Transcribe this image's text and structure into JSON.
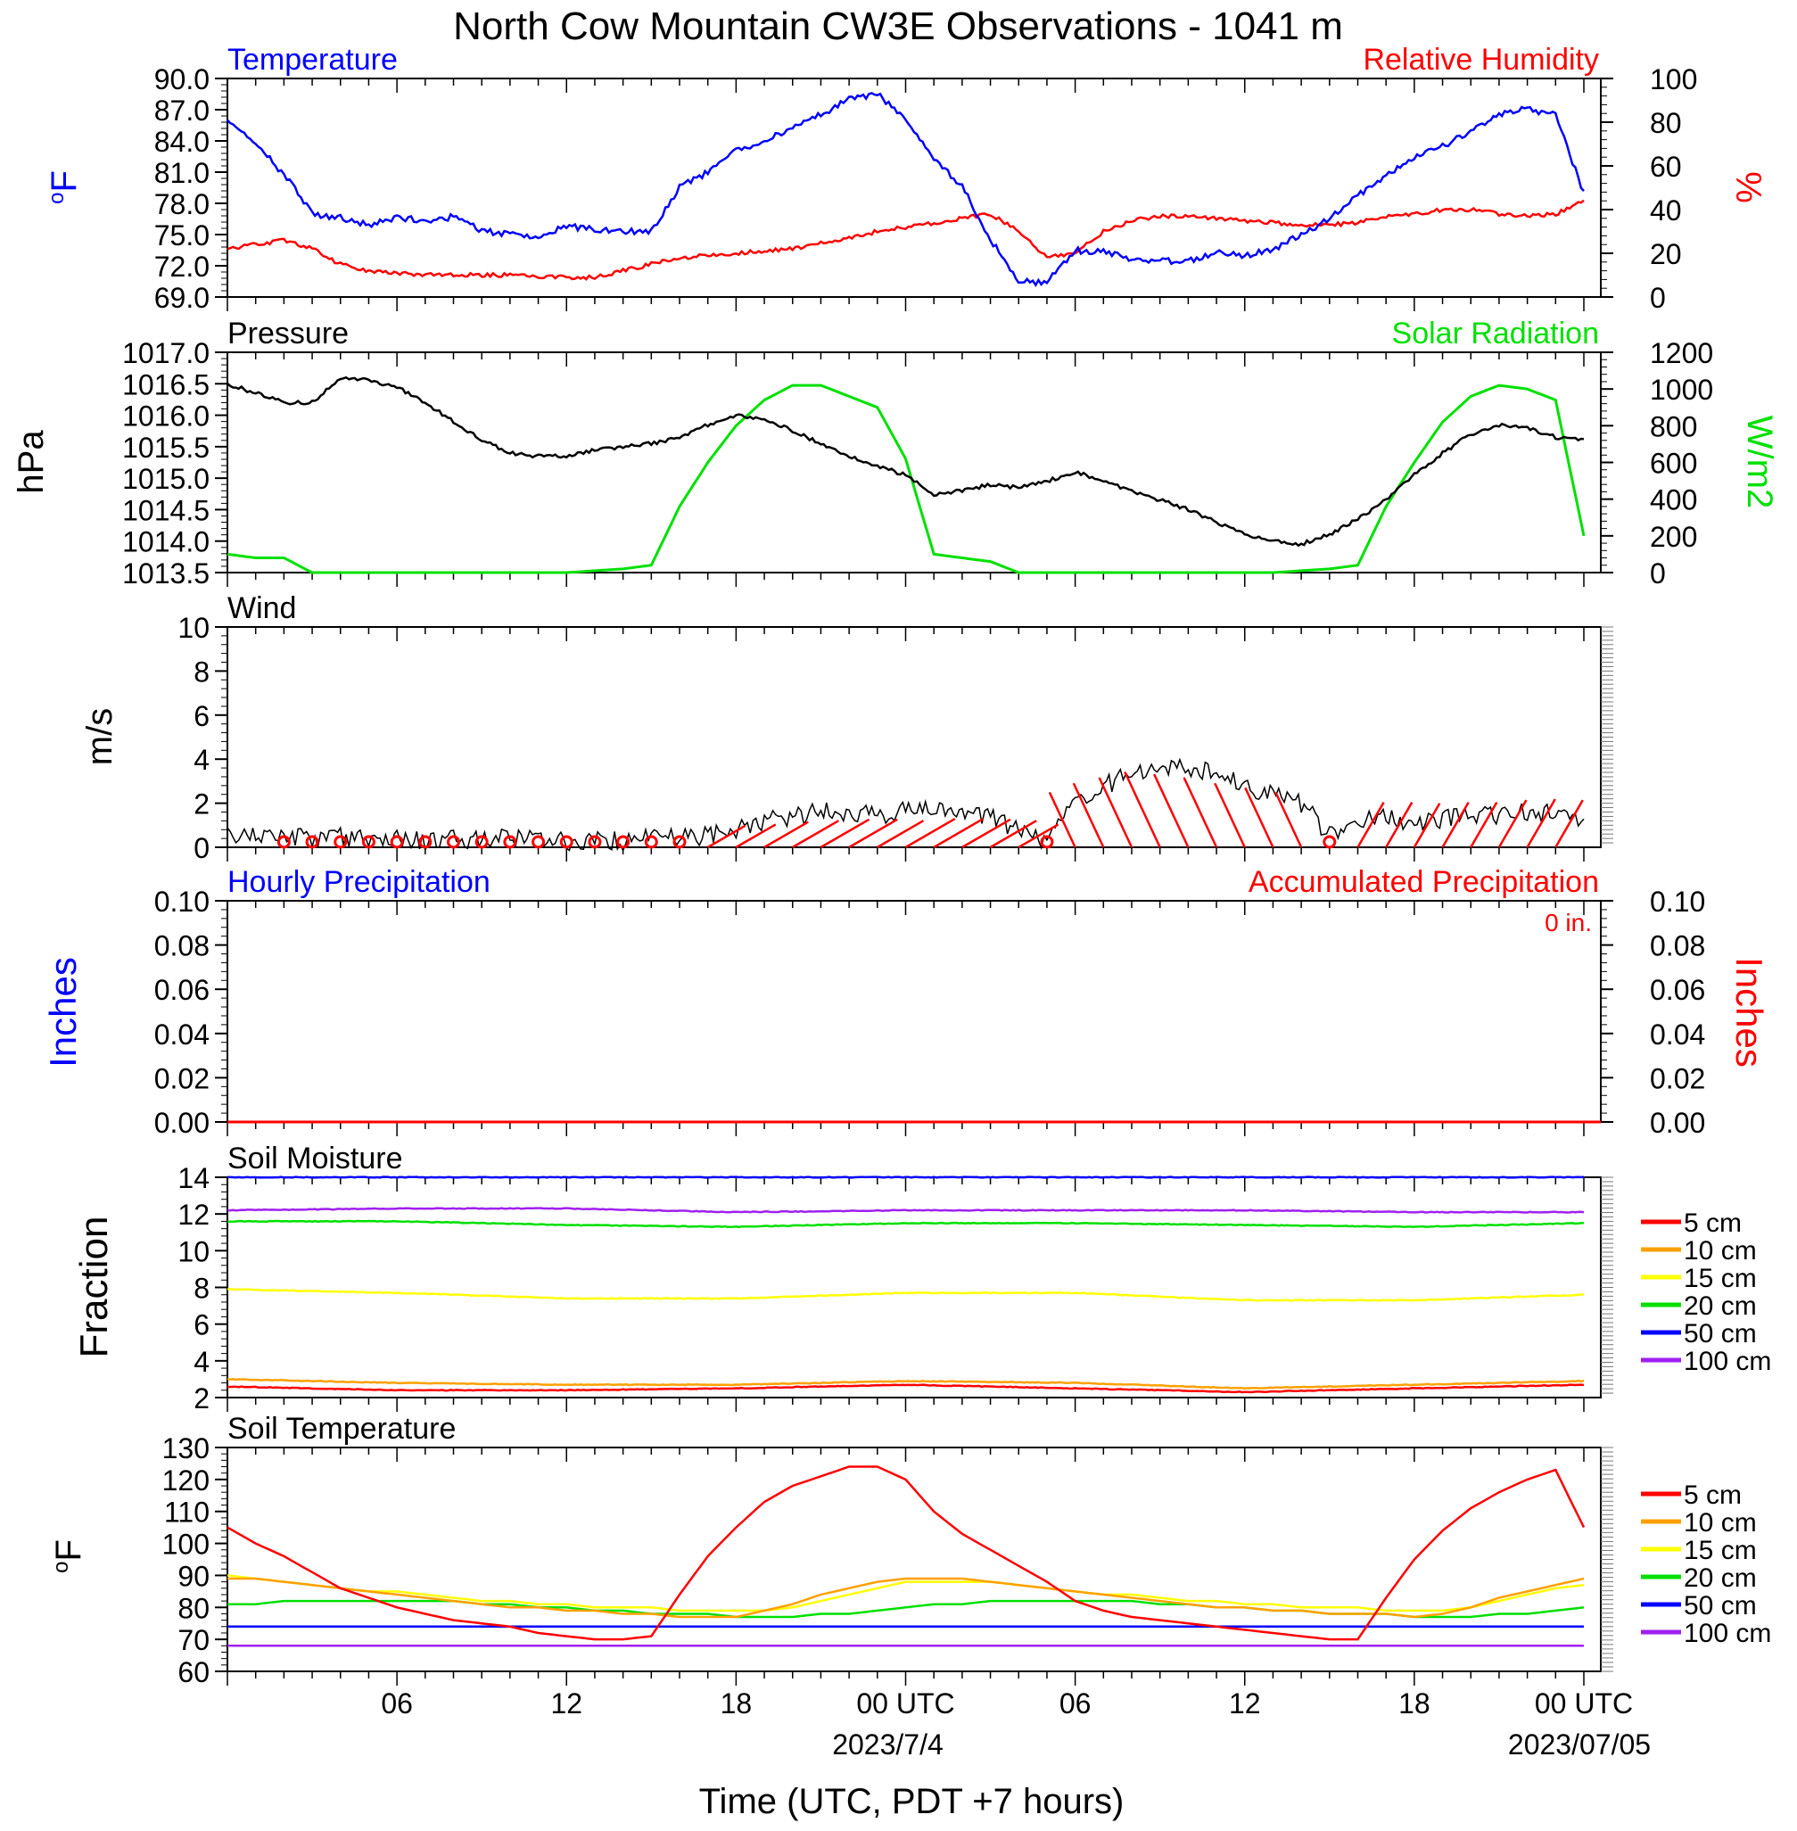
{
  "title": "North Cow Mountain CW3E Observations - 1041 m",
  "xaxis": {
    "ticks": [
      "06",
      "12",
      "18",
      "00 UTC",
      "06",
      "12",
      "18",
      "00 UTC"
    ],
    "date_labels": [
      "2023/7/4",
      "2023/07/05"
    ],
    "label": "Time (UTC, PDT +7 hours)"
  },
  "colors": {
    "temperature": "#0000ff",
    "humidity": "#ff0000",
    "pressure": "#000000",
    "solar": "#00e000",
    "wind": "#000000",
    "barb": "#ff0000",
    "precip_hourly": "#0000ff",
    "precip_accum": "#ff0000",
    "depth_5": "#ff0000",
    "depth_10": "#ffa000",
    "depth_15": "#ffff00",
    "depth_20": "#00e000",
    "depth_50": "#0000ff",
    "depth_100": "#a020f0"
  },
  "chart_data": [
    {
      "id": "temperature_humidity",
      "type": "line",
      "title_left": "Temperature",
      "title_right": "Relative Humidity",
      "ylabel_left": "oF",
      "ylabel_right": "%",
      "ylim_left": [
        69,
        90
      ],
      "ylim_right": [
        0,
        100
      ],
      "yticks_left": [
        "90.0",
        "87.0",
        "84.0",
        "81.0",
        "78.0",
        "75.0",
        "72.0",
        "69.0"
      ],
      "yticks_right": [
        "100",
        "80",
        "60",
        "40",
        "20",
        "0"
      ],
      "x_hours": [
        0,
        1,
        2,
        3,
        4,
        5,
        6,
        7,
        8,
        9,
        10,
        11,
        12,
        13,
        14,
        15,
        16,
        17,
        18,
        19,
        20,
        21,
        22,
        23,
        24,
        25,
        26,
        27,
        28,
        29,
        30,
        31,
        32,
        33,
        34,
        35,
        36,
        37,
        38,
        39,
        40,
        41,
        42,
        43,
        44,
        45,
        46,
        47,
        48
      ],
      "series": [
        {
          "name": "Temperature",
          "axis": "left",
          "values": [
            86.0,
            83.7,
            80.8,
            77.0,
            76.6,
            75.9,
            76.7,
            76.3,
            76.7,
            75.4,
            75.0,
            74.8,
            75.8,
            75.5,
            75.3,
            75.4,
            79.5,
            81.0,
            83.0,
            84.0,
            85.2,
            86.5,
            88.0,
            88.5,
            86.0,
            82.4,
            79.6,
            74.5,
            70.5,
            70.4,
            73.5,
            73.3,
            72.7,
            72.5,
            72.4,
            73.3,
            73.0,
            73.6,
            75.0,
            76.5,
            78.7,
            80.6,
            82.5,
            83.5,
            85.0,
            86.6,
            87.1,
            86.5,
            79.0
          ]
        },
        {
          "name": "Relative Humidity",
          "axis": "right",
          "values": [
            22,
            24,
            26,
            22,
            15,
            12,
            11,
            10,
            10,
            10,
            10,
            9,
            9,
            9,
            12,
            15,
            18,
            19,
            20,
            21,
            22,
            25,
            27,
            30,
            32,
            34,
            36,
            38,
            30,
            18,
            20,
            30,
            35,
            37,
            37,
            36,
            35,
            34,
            33,
            33,
            34,
            37,
            38,
            40,
            40,
            38,
            37,
            38,
            44
          ]
        }
      ]
    },
    {
      "id": "pressure_solar",
      "type": "line",
      "title_left": "Pressure",
      "title_right": "Solar Radiation",
      "ylabel_left": "hPa",
      "ylabel_right": "W/m2",
      "ylim_left": [
        1013.5,
        1017.0
      ],
      "ylim_right": [
        0,
        1200
      ],
      "yticks_left": [
        "1017.0",
        "1016.5",
        "1016.0",
        "1015.5",
        "1015.0",
        "1014.5",
        "1014.0",
        "1013.5"
      ],
      "yticks_right": [
        "1200",
        "1000",
        "800",
        "600",
        "400",
        "200",
        "0"
      ],
      "x_hours": [
        0,
        1,
        2,
        3,
        4,
        5,
        6,
        7,
        8,
        9,
        10,
        11,
        12,
        13,
        14,
        15,
        16,
        17,
        18,
        19,
        20,
        21,
        22,
        23,
        24,
        25,
        26,
        27,
        28,
        29,
        30,
        31,
        32,
        33,
        34,
        35,
        36,
        37,
        38,
        39,
        40,
        41,
        42,
        43,
        44,
        45,
        46,
        47,
        48
      ],
      "series": [
        {
          "name": "Pressure",
          "axis": "left",
          "values": [
            1016.5,
            1016.35,
            1016.2,
            1016.2,
            1016.6,
            1016.55,
            1016.45,
            1016.2,
            1015.9,
            1015.6,
            1015.4,
            1015.35,
            1015.35,
            1015.45,
            1015.5,
            1015.55,
            1015.65,
            1015.85,
            1016.0,
            1015.95,
            1015.75,
            1015.55,
            1015.35,
            1015.2,
            1015.05,
            1014.75,
            1014.8,
            1014.9,
            1014.85,
            1014.95,
            1015.1,
            1014.95,
            1014.8,
            1014.65,
            1014.5,
            1014.3,
            1014.1,
            1014.0,
            1013.95,
            1014.1,
            1014.35,
            1014.65,
            1015.05,
            1015.4,
            1015.7,
            1015.85,
            1015.8,
            1015.65,
            1015.6
          ]
        },
        {
          "name": "Solar Radiation",
          "axis": "right",
          "values": [
            100,
            80,
            80,
            0,
            0,
            0,
            0,
            0,
            0,
            0,
            0,
            0,
            0,
            10,
            20,
            40,
            360,
            600,
            800,
            940,
            1020,
            1020,
            960,
            900,
            620,
            100,
            80,
            60,
            0,
            0,
            0,
            0,
            0,
            0,
            0,
            0,
            0,
            0,
            10,
            20,
            40,
            360,
            600,
            820,
            960,
            1020,
            1000,
            940,
            200
          ]
        }
      ]
    },
    {
      "id": "wind",
      "type": "line",
      "title_left": "Wind",
      "ylabel_left": "m/s",
      "ylim": [
        0,
        10
      ],
      "yticks_left": [
        "10",
        "8",
        "6",
        "4",
        "2",
        "0"
      ],
      "x_hours": [
        0,
        1,
        2,
        3,
        4,
        5,
        6,
        7,
        8,
        9,
        10,
        11,
        12,
        13,
        14,
        15,
        16,
        17,
        18,
        19,
        20,
        21,
        22,
        23,
        24,
        25,
        26,
        27,
        28,
        29,
        30,
        31,
        32,
        33,
        34,
        35,
        36,
        37,
        38,
        39,
        40,
        41,
        42,
        43,
        44,
        45,
        46,
        47,
        48
      ],
      "series": [
        {
          "name": "Wind",
          "axis": "left",
          "values": [
            0.7,
            0.5,
            0.5,
            0.4,
            0.5,
            0.4,
            0.4,
            0.3,
            0.4,
            0.3,
            0.4,
            0.3,
            0.3,
            0.3,
            0.3,
            0.4,
            0.4,
            0.6,
            0.8,
            1.2,
            1.4,
            1.6,
            1.6,
            1.4,
            1.7,
            1.7,
            1.6,
            1.4,
            0.8,
            0.3,
            2.0,
            2.8,
            3.3,
            3.8,
            3.6,
            3.3,
            2.8,
            2.4,
            2.0,
            0.5,
            1.3,
            1.3,
            1.2,
            1.3,
            1.3,
            1.5,
            1.6,
            1.5,
            1.4
          ]
        }
      ]
    },
    {
      "id": "precipitation",
      "type": "line",
      "title_left": "Hourly Precipitation",
      "title_right": "Accumulated Precipitation",
      "annotation": "0 in.",
      "ylabel_left": "Inches",
      "ylabel_right": "Inches",
      "ylim_left": [
        0,
        0.1
      ],
      "ylim_right": [
        0,
        0.1
      ],
      "yticks_left": [
        "0.10",
        "0.08",
        "0.06",
        "0.04",
        "0.02",
        "0.00"
      ],
      "yticks_right": [
        "0.10",
        "0.08",
        "0.06",
        "0.04",
        "0.02",
        "0.00"
      ],
      "x_hours": [
        0,
        48
      ],
      "series": [
        {
          "name": "Hourly Precipitation",
          "axis": "left",
          "values": [
            0,
            0
          ]
        },
        {
          "name": "Accumulated Precipitation",
          "axis": "right",
          "values": [
            0,
            0
          ]
        }
      ]
    },
    {
      "id": "soil_moisture",
      "type": "line",
      "title_left": "Soil Moisture",
      "ylabel_left": "Fraction",
      "ylim": [
        2,
        14
      ],
      "yticks_left": [
        "14",
        "12",
        "10",
        "8",
        "6",
        "4",
        "2"
      ],
      "legend": [
        "5 cm",
        "10 cm",
        "15 cm",
        "20 cm",
        "50 cm",
        "100 cm"
      ],
      "x_hours": [
        0,
        6,
        12,
        18,
        24,
        30,
        36,
        42,
        48
      ],
      "series": [
        {
          "name": "5 cm",
          "values": [
            2.6,
            2.4,
            2.4,
            2.5,
            2.7,
            2.5,
            2.3,
            2.5,
            2.7
          ]
        },
        {
          "name": "10 cm",
          "values": [
            3.0,
            2.8,
            2.7,
            2.7,
            2.9,
            2.8,
            2.5,
            2.7,
            2.9
          ]
        },
        {
          "name": "15 cm",
          "values": [
            7.9,
            7.7,
            7.4,
            7.4,
            7.7,
            7.7,
            7.3,
            7.3,
            7.6
          ]
        },
        {
          "name": "20 cm",
          "values": [
            11.6,
            11.6,
            11.4,
            11.3,
            11.5,
            11.5,
            11.4,
            11.3,
            11.5
          ]
        },
        {
          "name": "50 cm",
          "values": [
            14.0,
            14.0,
            14.0,
            14.0,
            14.0,
            14.0,
            14.0,
            14.0,
            14.0
          ]
        },
        {
          "name": "100 cm",
          "values": [
            12.2,
            12.3,
            12.3,
            12.1,
            12.2,
            12.2,
            12.2,
            12.1,
            12.1
          ]
        }
      ]
    },
    {
      "id": "soil_temperature",
      "type": "line",
      "title_left": "Soil Temperature",
      "ylabel_left": "oF",
      "ylim": [
        60,
        130
      ],
      "yticks_left": [
        "130",
        "120",
        "110",
        "100",
        "90",
        "80",
        "70",
        "60"
      ],
      "legend": [
        "5 cm",
        "10 cm",
        "15 cm",
        "20 cm",
        "50 cm",
        "100 cm"
      ],
      "x_hours": [
        0,
        1,
        2,
        3,
        4,
        5,
        6,
        7,
        8,
        9,
        10,
        11,
        12,
        13,
        14,
        15,
        16,
        17,
        18,
        19,
        20,
        21,
        22,
        23,
        24,
        25,
        26,
        27,
        28,
        29,
        30,
        31,
        32,
        33,
        34,
        35,
        36,
        37,
        38,
        39,
        40,
        41,
        42,
        43,
        44,
        45,
        46,
        47,
        48
      ],
      "series": [
        {
          "name": "5 cm",
          "values": [
            105,
            100,
            96,
            91,
            86,
            83,
            80,
            78,
            76,
            75,
            74,
            72,
            71,
            70,
            70,
            71,
            84,
            96,
            105,
            113,
            118,
            121,
            124,
            124,
            120,
            110,
            103,
            98,
            93,
            88,
            82,
            79,
            77,
            76,
            75,
            74,
            73,
            72,
            71,
            70,
            70,
            83,
            95,
            104,
            111,
            116,
            120,
            123,
            105
          ]
        },
        {
          "name": "10 cm",
          "values": [
            89,
            89,
            88,
            87,
            86,
            85,
            84,
            83,
            82,
            81,
            80,
            80,
            79,
            79,
            78,
            78,
            77,
            77,
            77,
            79,
            81,
            84,
            86,
            88,
            89,
            89,
            89,
            88,
            87,
            86,
            85,
            84,
            83,
            82,
            81,
            80,
            80,
            79,
            79,
            78,
            78,
            78,
            77,
            78,
            80,
            83,
            85,
            87,
            89
          ]
        },
        {
          "name": "15 cm",
          "values": [
            90,
            89,
            88,
            87,
            86,
            85,
            85,
            84,
            83,
            82,
            82,
            81,
            81,
            80,
            80,
            80,
            79,
            79,
            79,
            79,
            80,
            82,
            84,
            86,
            88,
            88,
            88,
            88,
            87,
            86,
            85,
            84,
            84,
            83,
            82,
            82,
            81,
            81,
            80,
            80,
            80,
            79,
            79,
            79,
            80,
            82,
            84,
            86,
            87
          ]
        },
        {
          "name": "20 cm",
          "values": [
            81,
            81,
            82,
            82,
            82,
            82,
            82,
            82,
            82,
            81,
            81,
            80,
            80,
            79,
            79,
            78,
            78,
            78,
            77,
            77,
            77,
            78,
            78,
            79,
            80,
            81,
            81,
            82,
            82,
            82,
            82,
            82,
            82,
            81,
            81,
            80,
            80,
            79,
            79,
            78,
            78,
            78,
            77,
            77,
            77,
            78,
            78,
            79,
            80
          ]
        },
        {
          "name": "50 cm",
          "values": [
            74,
            74,
            74,
            74,
            74,
            74,
            74,
            74,
            74,
            74,
            74,
            74,
            74,
            74,
            74,
            74,
            74,
            74,
            74,
            74,
            74,
            74,
            74,
            74,
            74,
            74,
            74,
            74,
            74,
            74,
            74,
            74,
            74,
            74,
            74,
            74,
            74,
            74,
            74,
            74,
            74,
            74,
            74,
            74,
            74,
            74,
            74,
            74,
            74
          ]
        },
        {
          "name": "100 cm",
          "values": [
            68,
            68,
            68,
            68,
            68,
            68,
            68,
            68,
            68,
            68,
            68,
            68,
            68,
            68,
            68,
            68,
            68,
            68,
            68,
            68,
            68,
            68,
            68,
            68,
            68,
            68,
            68,
            68,
            68,
            68,
            68,
            68,
            68,
            68,
            68,
            68,
            68,
            68,
            68,
            68,
            68,
            68,
            68,
            68,
            68,
            68,
            68,
            68,
            68
          ]
        }
      ]
    }
  ]
}
